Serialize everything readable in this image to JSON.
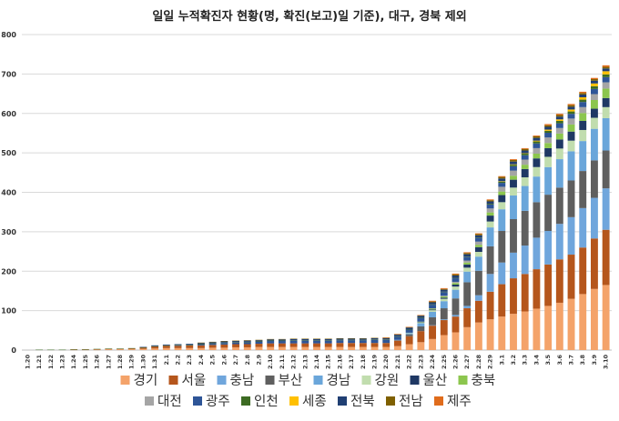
{
  "chart_data": {
    "type": "bar",
    "stacked": true,
    "title": "일일 누적확진자 현황(명, 확진(보고)일 기준), 대구, 경북 제외",
    "xlabel": "",
    "ylabel": "",
    "ylim": [
      0,
      800
    ],
    "yticks": [
      0,
      100,
      200,
      300,
      400,
      500,
      600,
      700,
      800
    ],
    "grid": true,
    "legend_position": "bottom",
    "categories": [
      "1.20",
      "1.21",
      "1.22",
      "1.23",
      "1.24",
      "1.25",
      "1.26",
      "1.27",
      "1.28",
      "1.29",
      "1.30",
      "1.31",
      "2.1",
      "2.2",
      "2.3",
      "2.4",
      "2.5",
      "2.6",
      "2.7",
      "2.8",
      "2.9",
      "2.10",
      "2.11",
      "2.12",
      "2.13",
      "2.14",
      "2.15",
      "2.16",
      "2.17",
      "2.18",
      "2.19",
      "2.20",
      "2.21",
      "2.22",
      "2.23",
      "2.24",
      "2.25",
      "2.26",
      "2.27",
      "2.28",
      "2.29",
      "3.1",
      "3.2",
      "3.3",
      "3.4",
      "3.5",
      "3.6",
      "3.7",
      "3.8",
      "3.9",
      "3.10"
    ],
    "series": [
      {
        "name": "경기",
        "color": "#F4A36A",
        "values": [
          0,
          0,
          0,
          0,
          0,
          0,
          1,
          2,
          2,
          2,
          3,
          4,
          5,
          5,
          5,
          5,
          6,
          6,
          7,
          7,
          8,
          8,
          8,
          8,
          8,
          8,
          8,
          8,
          8,
          8,
          8,
          8,
          10,
          15,
          20,
          28,
          38,
          45,
          58,
          70,
          78,
          85,
          92,
          98,
          105,
          112,
          120,
          130,
          142,
          155,
          165
        ]
      },
      {
        "name": "서울",
        "color": "#B5561C",
        "values": [
          0,
          0,
          0,
          0,
          1,
          1,
          1,
          1,
          1,
          2,
          3,
          5,
          6,
          6,
          7,
          7,
          7,
          8,
          8,
          8,
          8,
          9,
          9,
          9,
          9,
          9,
          9,
          10,
          10,
          10,
          10,
          10,
          14,
          20,
          28,
          34,
          38,
          40,
          48,
          55,
          70,
          82,
          90,
          95,
          100,
          105,
          110,
          112,
          118,
          128,
          140
        ]
      },
      {
        "name": "충남",
        "color": "#70A6DC",
        "values": [
          0,
          0,
          0,
          0,
          0,
          0,
          0,
          0,
          0,
          0,
          0,
          0,
          0,
          0,
          0,
          0,
          0,
          0,
          0,
          0,
          0,
          0,
          0,
          0,
          0,
          0,
          0,
          0,
          0,
          0,
          0,
          0,
          0,
          0,
          0,
          1,
          2,
          4,
          6,
          14,
          45,
          55,
          65,
          72,
          80,
          85,
          90,
          95,
          100,
          103,
          105
        ]
      },
      {
        "name": "부산",
        "color": "#5F5F5F",
        "values": [
          0,
          0,
          0,
          0,
          0,
          0,
          0,
          0,
          0,
          0,
          0,
          0,
          0,
          0,
          0,
          0,
          0,
          0,
          0,
          0,
          0,
          0,
          0,
          0,
          0,
          0,
          0,
          0,
          0,
          0,
          0,
          0,
          1,
          5,
          12,
          20,
          28,
          42,
          60,
          62,
          70,
          80,
          85,
          88,
          90,
          92,
          92,
          93,
          94,
          95,
          96
        ]
      },
      {
        "name": "경남",
        "color": "#6AA6DA",
        "values": [
          0,
          0,
          0,
          0,
          0,
          0,
          0,
          0,
          0,
          0,
          0,
          0,
          0,
          0,
          0,
          0,
          0,
          0,
          0,
          0,
          0,
          0,
          0,
          0,
          0,
          0,
          0,
          0,
          0,
          0,
          0,
          0,
          1,
          3,
          8,
          14,
          18,
          22,
          27,
          36,
          48,
          55,
          60,
          63,
          65,
          70,
          72,
          74,
          76,
          80,
          82
        ]
      },
      {
        "name": "강원",
        "color": "#C1DDAE",
        "values": [
          0,
          0,
          0,
          0,
          0,
          0,
          0,
          0,
          0,
          0,
          0,
          0,
          0,
          0,
          0,
          0,
          0,
          0,
          0,
          0,
          0,
          0,
          0,
          0,
          0,
          0,
          0,
          0,
          0,
          0,
          0,
          0,
          0,
          1,
          2,
          4,
          6,
          8,
          10,
          12,
          15,
          18,
          20,
          22,
          24,
          26,
          27,
          27,
          28,
          28,
          28
        ]
      },
      {
        "name": "울산",
        "color": "#1F3864",
        "values": [
          0,
          0,
          0,
          0,
          0,
          0,
          0,
          0,
          0,
          0,
          0,
          0,
          0,
          0,
          0,
          0,
          0,
          0,
          0,
          0,
          0,
          0,
          0,
          0,
          0,
          0,
          0,
          0,
          0,
          0,
          0,
          0,
          0,
          0,
          1,
          2,
          3,
          5,
          8,
          12,
          15,
          18,
          20,
          21,
          22,
          22,
          23,
          23,
          23,
          23,
          23
        ]
      },
      {
        "name": "충북",
        "color": "#8CC64E",
        "values": [
          0,
          0,
          0,
          0,
          0,
          0,
          0,
          0,
          0,
          0,
          0,
          0,
          0,
          0,
          0,
          0,
          0,
          0,
          0,
          0,
          0,
          0,
          0,
          0,
          0,
          0,
          0,
          0,
          0,
          0,
          0,
          0,
          0,
          0,
          1,
          2,
          3,
          4,
          5,
          6,
          8,
          9,
          10,
          11,
          12,
          13,
          15,
          18,
          20,
          22,
          24
        ]
      },
      {
        "name": "대전",
        "color": "#A5A5A5",
        "values": [
          0,
          0,
          0,
          0,
          0,
          0,
          0,
          0,
          0,
          0,
          0,
          0,
          0,
          0,
          0,
          0,
          0,
          0,
          0,
          0,
          0,
          0,
          0,
          0,
          0,
          0,
          0,
          0,
          0,
          0,
          0,
          0,
          0,
          0,
          0,
          1,
          2,
          3,
          5,
          8,
          10,
          12,
          13,
          13,
          14,
          14,
          14,
          15,
          15,
          15,
          16
        ]
      },
      {
        "name": "광주",
        "color": "#2E5597",
        "values": [
          0,
          0,
          0,
          0,
          0,
          0,
          0,
          0,
          0,
          0,
          0,
          0,
          0,
          1,
          1,
          2,
          3,
          4,
          4,
          5,
          5,
          6,
          6,
          7,
          7,
          7,
          7,
          7,
          7,
          7,
          8,
          8,
          8,
          8,
          9,
          9,
          9,
          9,
          9,
          9,
          10,
          10,
          11,
          11,
          12,
          12,
          12,
          12,
          13,
          13,
          13
        ]
      },
      {
        "name": "인천",
        "color": "#3D6B23",
        "values": [
          0,
          1,
          1,
          1,
          1,
          1,
          1,
          1,
          1,
          1,
          1,
          1,
          1,
          1,
          1,
          1,
          1,
          1,
          1,
          1,
          1,
          1,
          1,
          1,
          1,
          1,
          1,
          1,
          1,
          1,
          1,
          1,
          1,
          1,
          1,
          1,
          1,
          1,
          1,
          1,
          2,
          3,
          4,
          4,
          5,
          5,
          6,
          6,
          6,
          7,
          7
        ]
      },
      {
        "name": "세종",
        "color": "#FFC000",
        "values": [
          0,
          0,
          0,
          0,
          0,
          0,
          0,
          0,
          0,
          0,
          0,
          0,
          0,
          0,
          0,
          0,
          0,
          0,
          0,
          0,
          0,
          0,
          0,
          0,
          0,
          0,
          0,
          0,
          0,
          0,
          0,
          0,
          0,
          0,
          0,
          0,
          0,
          0,
          0,
          0,
          0,
          1,
          1,
          1,
          2,
          3,
          4,
          5,
          6,
          7,
          8
        ]
      },
      {
        "name": "전북",
        "color": "#203F73",
        "values": [
          0,
          0,
          0,
          0,
          0,
          0,
          0,
          0,
          0,
          0,
          1,
          2,
          2,
          2,
          2,
          3,
          3,
          3,
          3,
          3,
          3,
          3,
          3,
          3,
          3,
          3,
          3,
          3,
          3,
          3,
          3,
          3,
          4,
          4,
          5,
          5,
          5,
          6,
          6,
          6,
          6,
          7,
          7,
          7,
          7,
          7,
          7,
          7,
          7,
          7,
          7
        ]
      },
      {
        "name": "전남",
        "color": "#7F6000",
        "values": [
          0,
          0,
          0,
          0,
          0,
          0,
          0,
          0,
          0,
          0,
          0,
          0,
          0,
          0,
          0,
          1,
          1,
          1,
          1,
          1,
          1,
          1,
          1,
          1,
          1,
          1,
          1,
          1,
          1,
          1,
          1,
          1,
          1,
          1,
          1,
          2,
          2,
          3,
          3,
          3,
          3,
          4,
          4,
          4,
          4,
          4,
          4,
          4,
          4,
          4,
          4
        ]
      },
      {
        "name": "제주",
        "color": "#E06C1C",
        "values": [
          0,
          0,
          0,
          0,
          0,
          0,
          0,
          0,
          0,
          0,
          0,
          0,
          0,
          0,
          0,
          0,
          0,
          0,
          0,
          0,
          0,
          0,
          0,
          0,
          0,
          0,
          0,
          0,
          0,
          0,
          0,
          1,
          1,
          1,
          1,
          2,
          2,
          2,
          2,
          2,
          2,
          2,
          2,
          2,
          2,
          3,
          3,
          3,
          3,
          3,
          4
        ]
      }
    ]
  }
}
